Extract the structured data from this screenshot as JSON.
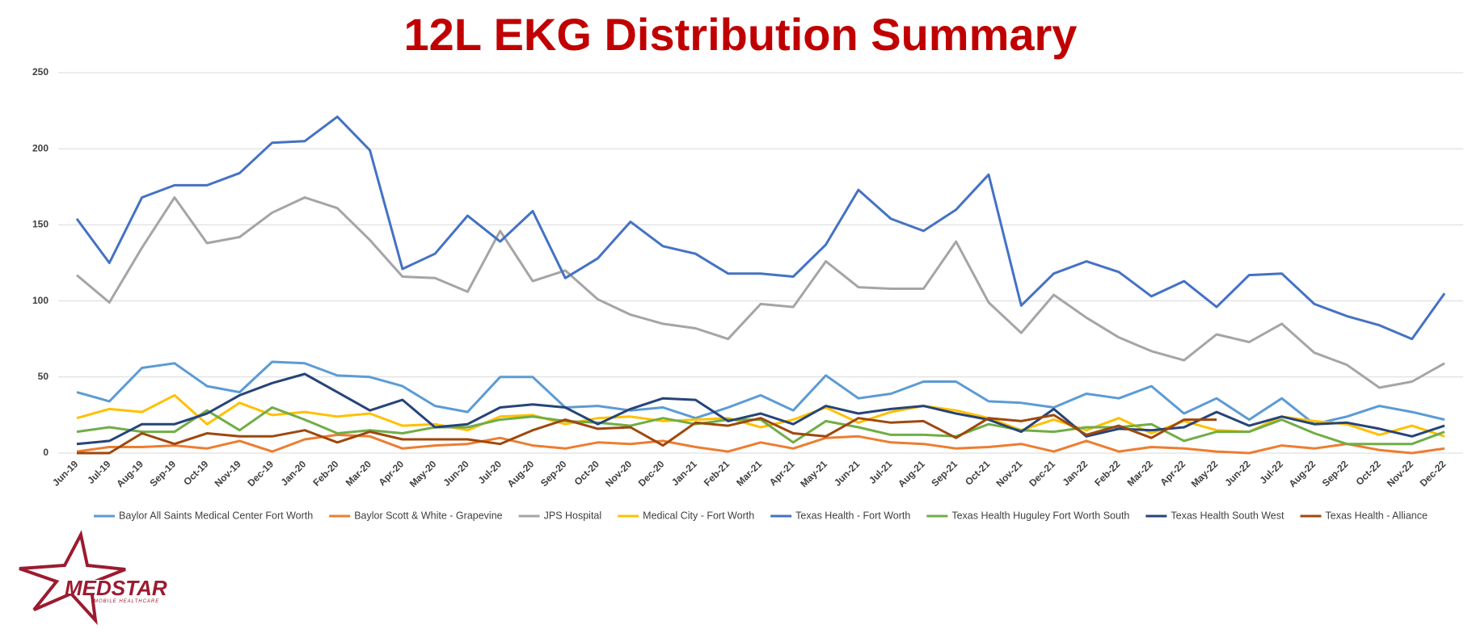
{
  "chart_data": {
    "type": "line",
    "title": "12L EKG Distribution Summary",
    "categories": [
      "Jun-19",
      "Jul-19",
      "Aug-19",
      "Sep-19",
      "Oct-19",
      "Nov-19",
      "Dec-19",
      "Jan-20",
      "Feb-20",
      "Mar-20",
      "Apr-20",
      "May-20",
      "Jun-20",
      "Jul-20",
      "Aug-20",
      "Sep-20",
      "Oct-20",
      "Nov-20",
      "Dec-20",
      "Jan-21",
      "Feb-21",
      "Mar-21",
      "Apr-21",
      "May-21",
      "Jun-21",
      "Jul-21",
      "Aug-21",
      "Sep-21",
      "Oct-21",
      "Nov-21",
      "Dec-21",
      "Jan-22",
      "Feb-22",
      "Mar-22",
      "Apr-22",
      "May-22",
      "Jun-22",
      "Jul-22",
      "Aug-22",
      "Sep-22",
      "Oct-22",
      "Nov-22",
      "Dec-22"
    ],
    "series": [
      {
        "name": "Baylor All Saints Medical Center Fort Worth",
        "color": "#5b9bd5",
        "values": [
          40,
          34,
          56,
          59,
          44,
          40,
          60,
          59,
          51,
          50,
          44,
          31,
          27,
          50,
          50,
          30,
          31,
          28,
          30,
          23,
          30,
          38,
          28,
          51,
          36,
          39,
          47,
          47,
          34,
          33,
          30,
          39,
          36,
          44,
          26,
          36,
          22,
          36,
          19,
          24,
          31,
          27,
          22
        ]
      },
      {
        "name": "Baylor Scott & White - Grapevine",
        "color": "#ed7d31",
        "values": [
          1,
          4,
          4,
          5,
          3,
          8,
          1,
          9,
          12,
          11,
          3,
          5,
          6,
          10,
          5,
          3,
          7,
          6,
          8,
          4,
          1,
          7,
          3,
          10,
          11,
          7,
          6,
          3,
          4,
          6,
          1,
          8,
          1,
          4,
          3,
          1,
          0,
          5,
          3,
          6,
          2,
          0,
          3
        ]
      },
      {
        "name": "JPS Hospital",
        "color": "#a5a5a5",
        "values": [
          117,
          99,
          135,
          168,
          138,
          142,
          158,
          168,
          161,
          140,
          116,
          115,
          106,
          146,
          113,
          120,
          101,
          91,
          85,
          82,
          75,
          98,
          96,
          126,
          109,
          108,
          108,
          139,
          99,
          79,
          104,
          89,
          76,
          67,
          61,
          78,
          73,
          85,
          66,
          58,
          43,
          47,
          59
        ]
      },
      {
        "name": "Medical City - Fort Worth",
        "color": "#ffc000",
        "values": [
          23,
          29,
          27,
          38,
          19,
          33,
          25,
          27,
          24,
          26,
          18,
          19,
          15,
          24,
          25,
          19,
          23,
          24,
          21,
          22,
          23,
          17,
          22,
          30,
          20,
          27,
          31,
          28,
          23,
          15,
          22,
          15,
          23,
          13,
          21,
          15,
          14,
          24,
          21,
          19,
          12,
          18,
          11
        ]
      },
      {
        "name": "Texas Health - Fort Worth",
        "color": "#4472c4",
        "values": [
          154,
          125,
          168,
          176,
          176,
          184,
          204,
          205,
          221,
          199,
          121,
          131,
          156,
          139,
          159,
          115,
          128,
          152,
          136,
          131,
          118,
          118,
          116,
          137,
          173,
          154,
          146,
          160,
          183,
          97,
          118,
          126,
          119,
          103,
          113,
          96,
          117,
          118,
          98,
          90,
          84,
          75,
          105
        ]
      },
      {
        "name": "Texas Health Huguley Fort Worth South",
        "color": "#70ad47",
        "values": [
          14,
          17,
          14,
          14,
          28,
          15,
          30,
          22,
          13,
          15,
          13,
          17,
          17,
          22,
          24,
          21,
          20,
          18,
          23,
          19,
          22,
          22,
          7,
          21,
          17,
          12,
          12,
          11,
          19,
          15,
          14,
          17,
          17,
          19,
          8,
          14,
          14,
          22,
          13,
          6,
          6,
          6,
          14
        ]
      },
      {
        "name": "Texas Health South West",
        "color": "#264478",
        "values": [
          6,
          8,
          19,
          19,
          26,
          38,
          46,
          52,
          40,
          28,
          35,
          17,
          19,
          30,
          32,
          30,
          19,
          29,
          36,
          35,
          21,
          26,
          19,
          31,
          26,
          29,
          31,
          26,
          22,
          14,
          29,
          11,
          16,
          15,
          17,
          27,
          18,
          24,
          19,
          20,
          16,
          11,
          18
        ]
      },
      {
        "name": "Texas Health - Alliance",
        "color": "#9e480e",
        "values": [
          0,
          0,
          13,
          6,
          13,
          11,
          11,
          15,
          7,
          14,
          9,
          9,
          9,
          6,
          15,
          22,
          16,
          17,
          5,
          20,
          18,
          23,
          13,
          11,
          23,
          20,
          21,
          10,
          23,
          21,
          25,
          12,
          18,
          10,
          22,
          22,
          null,
          null,
          null,
          null,
          null,
          null,
          null
        ]
      }
    ],
    "ylim": [
      0,
      250
    ],
    "yticks": [
      0,
      50,
      100,
      150,
      200,
      250
    ],
    "grid": true
  },
  "logo": {
    "name": "MEDSTAR",
    "tagline": "MOBILE HEALTHCARE"
  }
}
